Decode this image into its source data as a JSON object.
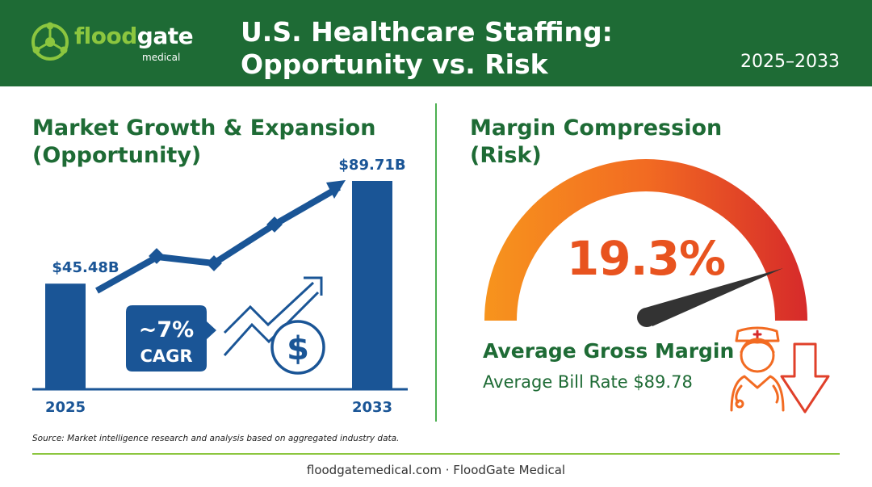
{
  "brand": {
    "logo_word_1": "flood",
    "logo_word_2": "gate",
    "logo_sub": "medical",
    "logo_icon": "molecule-icon"
  },
  "header": {
    "title_line1": "U.S. Healthcare Staffing:",
    "title_line2": "Opportunity vs. Risk",
    "year_range": "2025–2033"
  },
  "left_panel": {
    "title_line1": "Market Growth & Expansion",
    "title_line2": "(Opportunity)",
    "cagr_value": "~7%",
    "cagr_label": "CAGR",
    "icons": [
      "trend-arrow-icon",
      "dollar-coin-icon"
    ]
  },
  "chart_data": {
    "type": "bar",
    "categories": [
      "2025",
      "2033"
    ],
    "values": [
      45.48,
      89.71
    ],
    "data_labels": [
      "$45.48B",
      "$89.71B"
    ]
  },
  "right_panel": {
    "title_line1": "Margin Compression",
    "title_line2": "(Risk)",
    "gauge_value": "19.3%",
    "gauge_level": 0.193,
    "metric_label": "Average Gross Margin",
    "metric_sub": "Average Bill Rate $89.78",
    "icons": [
      "nurse-icon",
      "down-arrow-icon"
    ]
  },
  "colors": {
    "brand_green": "#1e6b35",
    "accent_green": "#8cc63f",
    "bar_blue": "#1a5596",
    "gauge_orange": "#f7931e",
    "gauge_red": "#d62a2a"
  },
  "source_note": "Source: Market intelligence research and analysis based on aggregated industry data.",
  "footer": "floodgatemedical.com · FloodGate Medical"
}
